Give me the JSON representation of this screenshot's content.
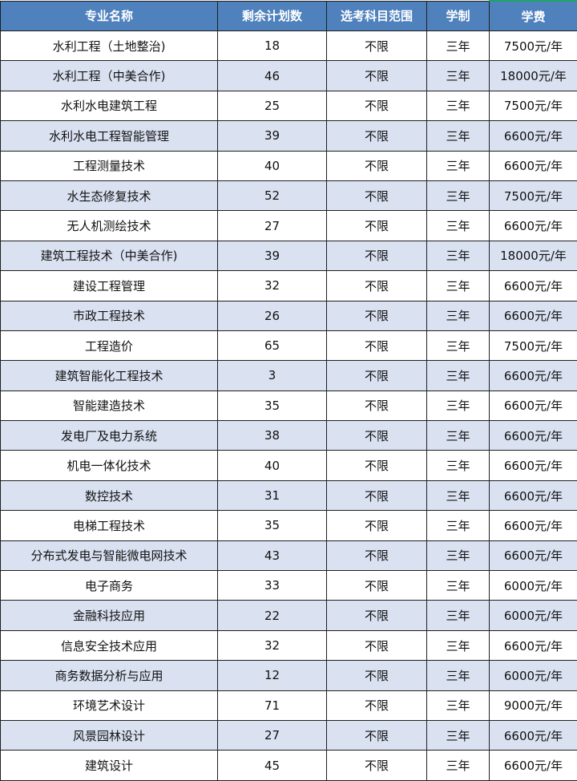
{
  "headers": [
    "专业名称",
    "剩余计划数",
    "选考科目范围",
    "学制",
    "学费"
  ],
  "colors": {
    "header_bg": "#4f81bd",
    "alt_row_bg": "#dae2f2",
    "selection": "#21a366"
  },
  "rows": [
    [
      "水利工程（土地整治)",
      "18",
      "不限",
      "三年",
      "7500元/年"
    ],
    [
      "水利工程（中美合作)",
      "46",
      "不限",
      "三年",
      "18000元/年"
    ],
    [
      "水利水电建筑工程",
      "25",
      "不限",
      "三年",
      "7500元/年"
    ],
    [
      "水利水电工程智能管理",
      "39",
      "不限",
      "三年",
      "6600元/年"
    ],
    [
      "工程测量技术",
      "40",
      "不限",
      "三年",
      "6600元/年"
    ],
    [
      "水生态修复技术",
      "52",
      "不限",
      "三年",
      "7500元/年"
    ],
    [
      "无人机测绘技术",
      "27",
      "不限",
      "三年",
      "6600元/年"
    ],
    [
      "建筑工程技术（中美合作)",
      "39",
      "不限",
      "三年",
      "18000元/年"
    ],
    [
      "建设工程管理",
      "32",
      "不限",
      "三年",
      "6600元/年"
    ],
    [
      "市政工程技术",
      "26",
      "不限",
      "三年",
      "6600元/年"
    ],
    [
      "工程造价",
      "65",
      "不限",
      "三年",
      "7500元/年"
    ],
    [
      "建筑智能化工程技术",
      "3",
      "不限",
      "三年",
      "6600元/年"
    ],
    [
      "智能建造技术",
      "35",
      "不限",
      "三年",
      "6600元/年"
    ],
    [
      "发电厂及电力系统",
      "38",
      "不限",
      "三年",
      "6600元/年"
    ],
    [
      "机电一体化技术",
      "40",
      "不限",
      "三年",
      "6600元/年"
    ],
    [
      "数控技术",
      "31",
      "不限",
      "三年",
      "6600元/年"
    ],
    [
      "电梯工程技术",
      "35",
      "不限",
      "三年",
      "6600元/年"
    ],
    [
      "分布式发电与智能微电网技术",
      "43",
      "不限",
      "三年",
      "6600元/年"
    ],
    [
      "电子商务",
      "33",
      "不限",
      "三年",
      "6000元/年"
    ],
    [
      "金融科技应用",
      "22",
      "不限",
      "三年",
      "6000元/年"
    ],
    [
      "信息安全技术应用",
      "32",
      "不限",
      "三年",
      "6600元/年"
    ],
    [
      "商务数据分析与应用",
      "12",
      "不限",
      "三年",
      "6000元/年"
    ],
    [
      "环境艺术设计",
      "71",
      "不限",
      "三年",
      "9000元/年"
    ],
    [
      "风景园林设计",
      "27",
      "不限",
      "三年",
      "6600元/年"
    ],
    [
      "建筑设计",
      "45",
      "不限",
      "三年",
      "6600元/年"
    ]
  ]
}
